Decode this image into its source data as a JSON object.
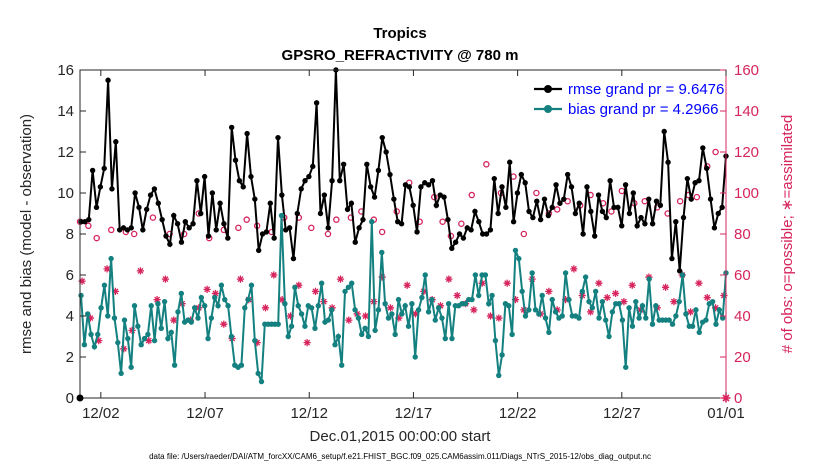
{
  "chart_data": {
    "type": "line",
    "title": "Tropics",
    "subtitle": "GPSRO_REFRACTIVITY @ 780 m",
    "xlabel": "Dec.01,2015 00:00:00 start",
    "ylabel": "rmse and bias (model - observation)",
    "y2label": "# of obs: o=possible; ∗=assimilated",
    "x_ticks": [
      {
        "value": 1,
        "label": "12/02"
      },
      {
        "value": 6,
        "label": "12/07"
      },
      {
        "value": 11,
        "label": "12/12"
      },
      {
        "value": 16,
        "label": "12/17"
      },
      {
        "value": 21,
        "label": "12/22"
      },
      {
        "value": 26,
        "label": "12/27"
      },
      {
        "value": 31,
        "label": "01/01"
      }
    ],
    "xlim": [
      0,
      31
    ],
    "ylim": [
      0,
      16
    ],
    "y_ticks": [
      0,
      2,
      4,
      6,
      8,
      10,
      12,
      14,
      16
    ],
    "y2lim": [
      0,
      160
    ],
    "y2_ticks": [
      0,
      20,
      40,
      60,
      80,
      100,
      120,
      140,
      160
    ],
    "legend_position": "top-right",
    "colors": {
      "rmse": "#000000",
      "bias": "#148080",
      "obs": "#d6245c",
      "legend_text": "#0000ff"
    },
    "series": [
      {
        "name": "rmse grand pr = 9.6476",
        "marker": "filled-circle",
        "values": [
          8.6,
          8.6,
          8.7,
          11.1,
          9.3,
          10.3,
          11.2,
          15.5,
          10.2,
          12.5,
          8.2,
          8.3,
          8.2,
          8.3,
          10.0,
          9.3,
          8.2,
          9.2,
          9.9,
          10.2,
          9.5,
          8.7,
          7.9,
          7.5,
          8.9,
          8.5,
          7.6,
          8.6,
          8.3,
          8.5,
          10.6,
          9.0,
          10.8,
          7.9,
          10.0,
          8.2,
          9.5,
          8.5,
          7.8,
          13.2,
          11.6,
          10.6,
          10.3,
          12.9,
          10.8,
          9.7,
          7.2,
          8.0,
          8.1,
          9.5,
          7.8,
          12.7,
          9.9,
          8.2,
          8.3,
          6.8,
          9.0,
          10.2,
          10.6,
          10.8,
          11.3,
          14.4,
          9.0,
          9.9,
          8.3,
          10.6,
          16.0,
          10.6,
          11.4,
          9.2,
          9.5,
          7.6,
          8.3,
          8.7,
          11.4,
          10.3,
          9.8,
          11.1,
          12.7,
          12.0,
          10.9,
          9.7,
          8.6,
          8.5,
          10.4,
          10.3,
          9.4,
          8.1,
          10.3,
          10.5,
          10.4,
          10.6,
          9.4,
          9.9,
          9.8,
          8.7,
          7.3,
          7.6,
          8.0,
          7.8,
          8.3,
          8.2,
          9.1,
          8.6,
          8.0,
          8.0,
          8.2,
          10.7,
          9.0,
          10.3,
          9.3,
          11.5,
          8.6,
          10.0,
          10.9,
          10.5,
          9.1,
          8.8,
          9.6,
          8.7,
          9.7,
          8.9,
          9.3,
          10.4,
          9.5,
          9.7,
          10.9,
          10.3,
          9.0,
          9.5,
          8.0,
          10.3,
          9.1,
          7.9,
          9.9,
          9.1,
          8.8,
          10.6,
          9.3,
          9.3,
          8.4,
          10.4,
          9.0,
          10.0,
          8.4,
          8.8,
          8.5,
          9.7,
          8.5,
          9.6,
          9.4,
          13.0,
          11.5,
          6.8,
          8.6,
          6.2,
          8.8,
          10.7,
          9.7,
          10.5,
          10.6,
          12.2,
          11.2,
          9.7,
          8.3,
          9.0,
          9.3,
          11.8
        ]
      },
      {
        "name": "bias grand pr = 4.2966",
        "marker": "filled-circle",
        "values": [
          5.0,
          2.6,
          4.1,
          3.1,
          2.5,
          3.1,
          4.4,
          5.5,
          4.0,
          6.8,
          3.9,
          2.7,
          1.2,
          3.8,
          2.9,
          1.5,
          4.5,
          3.5,
          2.6,
          2.9,
          3.1,
          4.5,
          2.8,
          4.6,
          3.4,
          4.7,
          2.9,
          3.2,
          1.6,
          4.2,
          5.1,
          3.7,
          3.8,
          3.7,
          4.4,
          3.9,
          4.9,
          4.5,
          2.9,
          3.9,
          4.9,
          4.5,
          5.5,
          4.8,
          4.5,
          3.0,
          1.6,
          1.5,
          1.6,
          4.4,
          4.8,
          5.5,
          2.8,
          1.2,
          0.8,
          3.6,
          3.6,
          3.6,
          3.6,
          3.6,
          8.9,
          4.6,
          3.0,
          3.5,
          5.4,
          4.5,
          4.1,
          3.5,
          4.5,
          4.4,
          3.4,
          4.5,
          5.6,
          3.7,
          3.8,
          4.3,
          2.6,
          3.0,
          1.6,
          5.2,
          5.4,
          5.6,
          4.3,
          3.9,
          3.1,
          3.4,
          3.0,
          8.6,
          3.3,
          4.3,
          7.1,
          4.6,
          3.9,
          4.1,
          3.1,
          4.8,
          4.1,
          4.5,
          3.5,
          4.6,
          2.0,
          4.3,
          4.9,
          6.0,
          4.2,
          4.8,
          3.8,
          4.4,
          3.9,
          2.9,
          4.6,
          2.9,
          4.5,
          4.5,
          4.6,
          4.6,
          4.8,
          4.8,
          6.0,
          5.0,
          6.0,
          6.0,
          4.6,
          5.0,
          2.8,
          1.1,
          2.1,
          4.6,
          4.5,
          3.1,
          7.2,
          6.8,
          5.2,
          4.0,
          4.3,
          6.1,
          4.3,
          4.1,
          5.0,
          3.9,
          3.2,
          4.8,
          4.2,
          3.9,
          4.0,
          6.1,
          4.8,
          4.0,
          4.0,
          3.9,
          5.2,
          5.9,
          4.7,
          4.4,
          5.2,
          3.9,
          4.7,
          3.8,
          3.0,
          4.2,
          4.6,
          4.6,
          3.8,
          1.5,
          4.4,
          3.5,
          4.7,
          3.9,
          4.5,
          3.9,
          5.8,
          3.6,
          4.5,
          3.8,
          3.8,
          3.8,
          3.8,
          3.6,
          4.0,
          4.7,
          6.0,
          4.1,
          3.5,
          3.5,
          4.3,
          3.2,
          3.7,
          3.8,
          4.6,
          4.7,
          3.6,
          4.3,
          3.9,
          6.1
        ]
      },
      {
        "name": "obs possible",
        "axis": "right",
        "marker": "open-circle",
        "x": [
          0,
          0.4,
          0.8,
          1.5,
          2.2,
          2.6,
          3.5,
          4.3,
          5.0,
          5.7,
          6.2,
          6.9,
          7.6,
          8.0,
          8.5,
          9.2,
          9.8,
          10.5,
          11.1,
          11.9,
          12.3,
          13.0,
          13.5,
          14.1,
          14.5,
          15.2,
          15.8,
          16.3,
          17.0,
          17.4,
          17.8,
          18.3,
          18.8,
          19.5,
          20.2,
          20.8,
          21.3,
          21.9,
          22.5,
          22.9,
          23.4,
          24.0,
          24.5,
          25.1,
          25.5,
          26.0,
          26.6,
          27.1,
          27.7,
          28.2,
          28.8,
          29.2,
          29.6,
          30.1,
          30.5
        ],
        "values": [
          86,
          84,
          78,
          82,
          81,
          80,
          88,
          80,
          80,
          90,
          78,
          82,
          83,
          87,
          84,
          81,
          88,
          88,
          83,
          80,
          87,
          88,
          91,
          87,
          81,
          91,
          105,
          86,
          98,
          86,
          79,
          85,
          99,
          114,
          100,
          108,
          80,
          100,
          90,
          92,
          96,
          94,
          99,
          95,
          91,
          101,
          95,
          96,
          93,
          90,
          96,
          99,
          98,
          113,
          120
        ]
      },
      {
        "name": "obs assimilated",
        "axis": "right",
        "marker": "asterisk",
        "x": [
          0.1,
          0.5,
          0.9,
          1.3,
          1.7,
          2.1,
          2.5,
          2.9,
          3.3,
          3.7,
          4.1,
          4.5,
          4.9,
          5.3,
          5.7,
          6.1,
          6.5,
          6.9,
          7.3,
          7.7,
          8.1,
          8.5,
          8.9,
          9.3,
          9.7,
          10.1,
          10.5,
          10.9,
          11.3,
          11.7,
          12.1,
          12.5,
          12.9,
          13.3,
          13.7,
          14.1,
          14.5,
          14.9,
          15.3,
          15.7,
          16.1,
          16.5,
          16.9,
          17.3,
          17.7,
          18.1,
          18.5,
          18.9,
          19.3,
          19.7,
          20.1,
          20.5,
          20.9,
          21.3,
          21.7,
          22.1,
          22.5,
          22.9,
          23.3,
          23.7,
          24.1,
          24.5,
          24.9,
          25.3,
          25.7,
          26.1,
          26.5,
          26.9,
          27.3,
          27.7,
          28.1,
          28.5,
          28.9,
          29.3,
          29.7,
          30.1,
          30.5,
          30.9
        ],
        "values": [
          57,
          39,
          28,
          63,
          52,
          24,
          33,
          62,
          28,
          48,
          58,
          38,
          46,
          38,
          44,
          53,
          51,
          36,
          29,
          58,
          48,
          27,
          44,
          60,
          48,
          40,
          55,
          27,
          52,
          47,
          44,
          58,
          38,
          41,
          40,
          47,
          59,
          44,
          39,
          55,
          41,
          52,
          48,
          45,
          58,
          50,
          46,
          43,
          56,
          40,
          39,
          56,
          48,
          43,
          58,
          41,
          52,
          43,
          48,
          63,
          50,
          42,
          56,
          49,
          51,
          47,
          55,
          43,
          59,
          44,
          54,
          47,
          60,
          42,
          56,
          49,
          44,
          50
        ]
      }
    ],
    "axis_zero_markers": {
      "left": "0",
      "right": "0"
    }
  },
  "footer": {
    "file_label": "data file: /Users/raeder/DAI/ATM_forcXX/CAM6_setup/f.e21.FHIST_BGC.f09_025.CAM6assim.011/Diags_NTrS_2015-12/obs_diag_output.nc"
  }
}
